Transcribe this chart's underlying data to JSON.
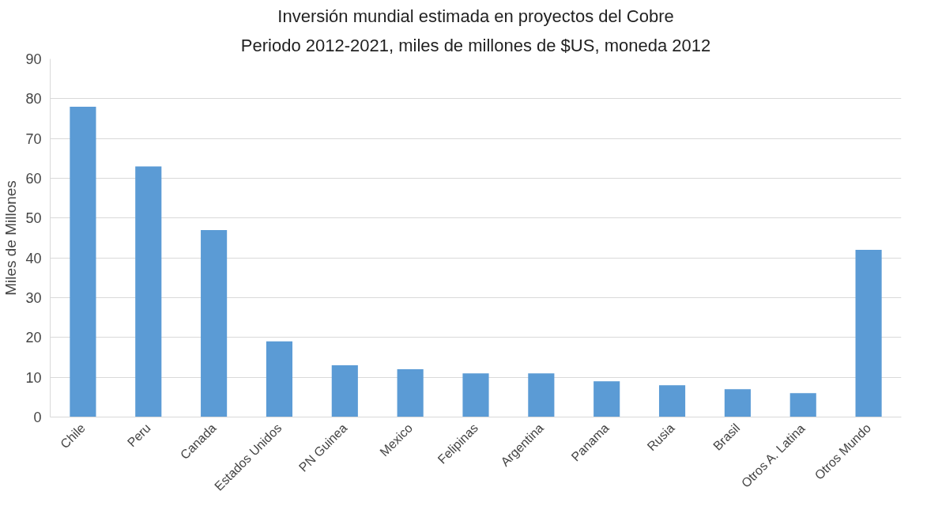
{
  "chart_data": {
    "type": "bar",
    "title": "Inversión mundial estimada en proyectos del Cobre",
    "subtitle": "Periodo 2012-2021, miles de millones de $US, moneda 2012",
    "ylabel": "Miles de Millones",
    "categories": [
      "Chile",
      "Peru",
      "Canada",
      "Estados Unidos",
      "PN Guinea",
      "Mexico",
      "Felipinas",
      "Argentina",
      "Panama",
      "Rusia",
      "Brasil",
      "Otros A. Latina",
      "Otros Mundo"
    ],
    "values": [
      78,
      63,
      47,
      19,
      13,
      12,
      11,
      11,
      9,
      8,
      7,
      6,
      42
    ],
    "color": "#5b9bd5",
    "ylim": [
      0,
      90
    ],
    "yticks": [
      0,
      10,
      20,
      30,
      40,
      50,
      60,
      70,
      80,
      90
    ],
    "grid": "y"
  }
}
